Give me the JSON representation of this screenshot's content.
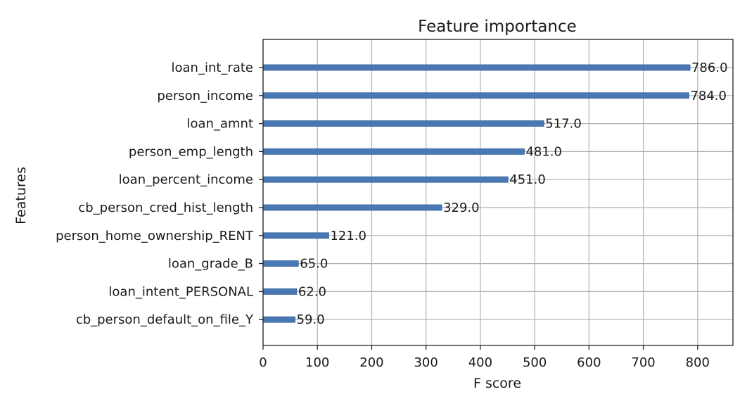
{
  "chart_data": {
    "type": "bar",
    "orientation": "horizontal",
    "title": "Feature importance",
    "xlabel": "F score",
    "ylabel": "Features",
    "categories": [
      "loan_int_rate",
      "person_income",
      "loan_amnt",
      "person_emp_length",
      "loan_percent_income",
      "cb_person_cred_hist_length",
      "person_home_ownership_RENT",
      "loan_grade_B",
      "loan_intent_PERSONAL",
      "cb_person_default_on_file_Y"
    ],
    "values": [
      786,
      784,
      517,
      481,
      451,
      329,
      121,
      65,
      62,
      59
    ],
    "value_labels": [
      "786.0",
      "784.0",
      "517.0",
      "481.0",
      "451.0",
      "329.0",
      "121.0",
      "65.0",
      "62.0",
      "59.0"
    ],
    "xlim": [
      0,
      865
    ],
    "xticks": [
      0,
      100,
      200,
      300,
      400,
      500,
      600,
      700,
      800
    ],
    "grid": true,
    "bar_color": "#4a78b5"
  }
}
